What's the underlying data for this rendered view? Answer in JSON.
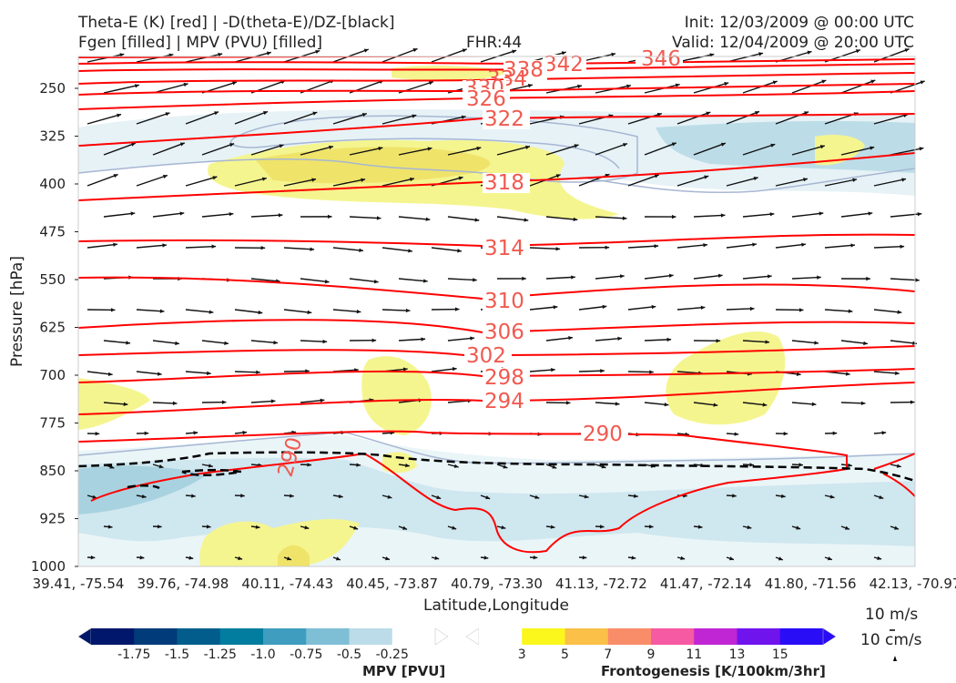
{
  "header": {
    "title_line1": "Theta-E (K) [red] | -D(theta-E)/DZ-[black]",
    "title_line2": "Fgen [filled] | MPV (PVU) [filled]",
    "fhr": "FHR:44",
    "init": "Init: 12/03/2009 @ 00:00 UTC",
    "valid": "Valid: 12/04/2009 @ 20:00 UTC"
  },
  "colors": {
    "theta_e": "#ff0000",
    "dthetae_dz": "#000000",
    "mpv_scale": [
      "#00176b",
      "#013b7a",
      "#035d8c",
      "#037d9f",
      "#3f9dbf",
      "#7ebfd6",
      "#bbdce8",
      "#ffffff"
    ],
    "fgen_scale": [
      "#ffffff",
      "#fbf61b",
      "#fbc047",
      "#f98d6a",
      "#f65aa3",
      "#c026d3",
      "#7014ee",
      "#2a0df7"
    ]
  },
  "chart_data": {
    "type": "cross-section",
    "ylabel": "Pressure [hPa]",
    "xlabel": "Latitude,Longitude",
    "ylim": [
      1000,
      200
    ],
    "yticks": [
      250,
      325,
      400,
      475,
      550,
      625,
      700,
      775,
      850,
      925,
      1000
    ],
    "xticks": [
      "39.41, -75.54",
      "39.76, -74.98",
      "40.11, -74.43",
      "40.45, -73.87",
      "40.79, -73.30",
      "41.13, -72.72",
      "41.47, -72.14",
      "41.80, -71.56",
      "42.13, -70.97"
    ],
    "theta_e_contours": [
      {
        "label": "346",
        "level": 346
      },
      {
        "label": "342",
        "level": 342
      },
      {
        "label": "338",
        "level": 338
      },
      {
        "label": "334",
        "level": 334
      },
      {
        "label": "330",
        "level": 330
      },
      {
        "label": "326",
        "level": 326
      },
      {
        "label": "322",
        "level": 322
      },
      {
        "label": "318",
        "level": 318
      },
      {
        "label": "314",
        "level": 314
      },
      {
        "label": "310",
        "level": 310
      },
      {
        "label": "306",
        "level": 306
      },
      {
        "label": "302",
        "level": 302
      },
      {
        "label": "298",
        "level": 298
      },
      {
        "label": "294",
        "level": 294
      },
      {
        "label": "290",
        "level": 290
      },
      {
        "label": "290",
        "level": 290
      }
    ],
    "wind_reference": {
      "horizontal": "10 m/s",
      "vertical": "10 cm/s"
    },
    "colorbars": [
      {
        "name": "MPV [PVU]",
        "ticks": [
          "-1.75",
          "-1.5",
          "-1.25",
          "-1.0",
          "-0.75",
          "-0.5",
          "-0.25"
        ]
      },
      {
        "name": "Frontogenesis [K/100km/3hr]",
        "ticks": [
          "3",
          "5",
          "7",
          "9",
          "11",
          "13",
          "15"
        ]
      }
    ]
  }
}
